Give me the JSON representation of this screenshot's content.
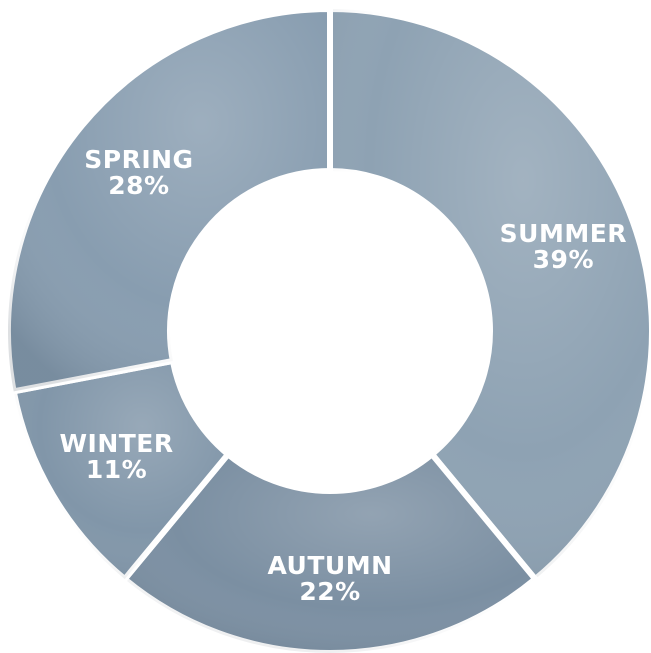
{
  "chart_data": {
    "type": "donut",
    "categories": [
      "SUMMER",
      "AUTUMN",
      "WINTER",
      "SPRING"
    ],
    "values": [
      39,
      22,
      11,
      28
    ],
    "value_labels": [
      "39%",
      "22%",
      "11%",
      "28%"
    ],
    "colors": [
      "#8ea2b3",
      "#7b8fa2",
      "#8196a9",
      "#889db0"
    ]
  }
}
